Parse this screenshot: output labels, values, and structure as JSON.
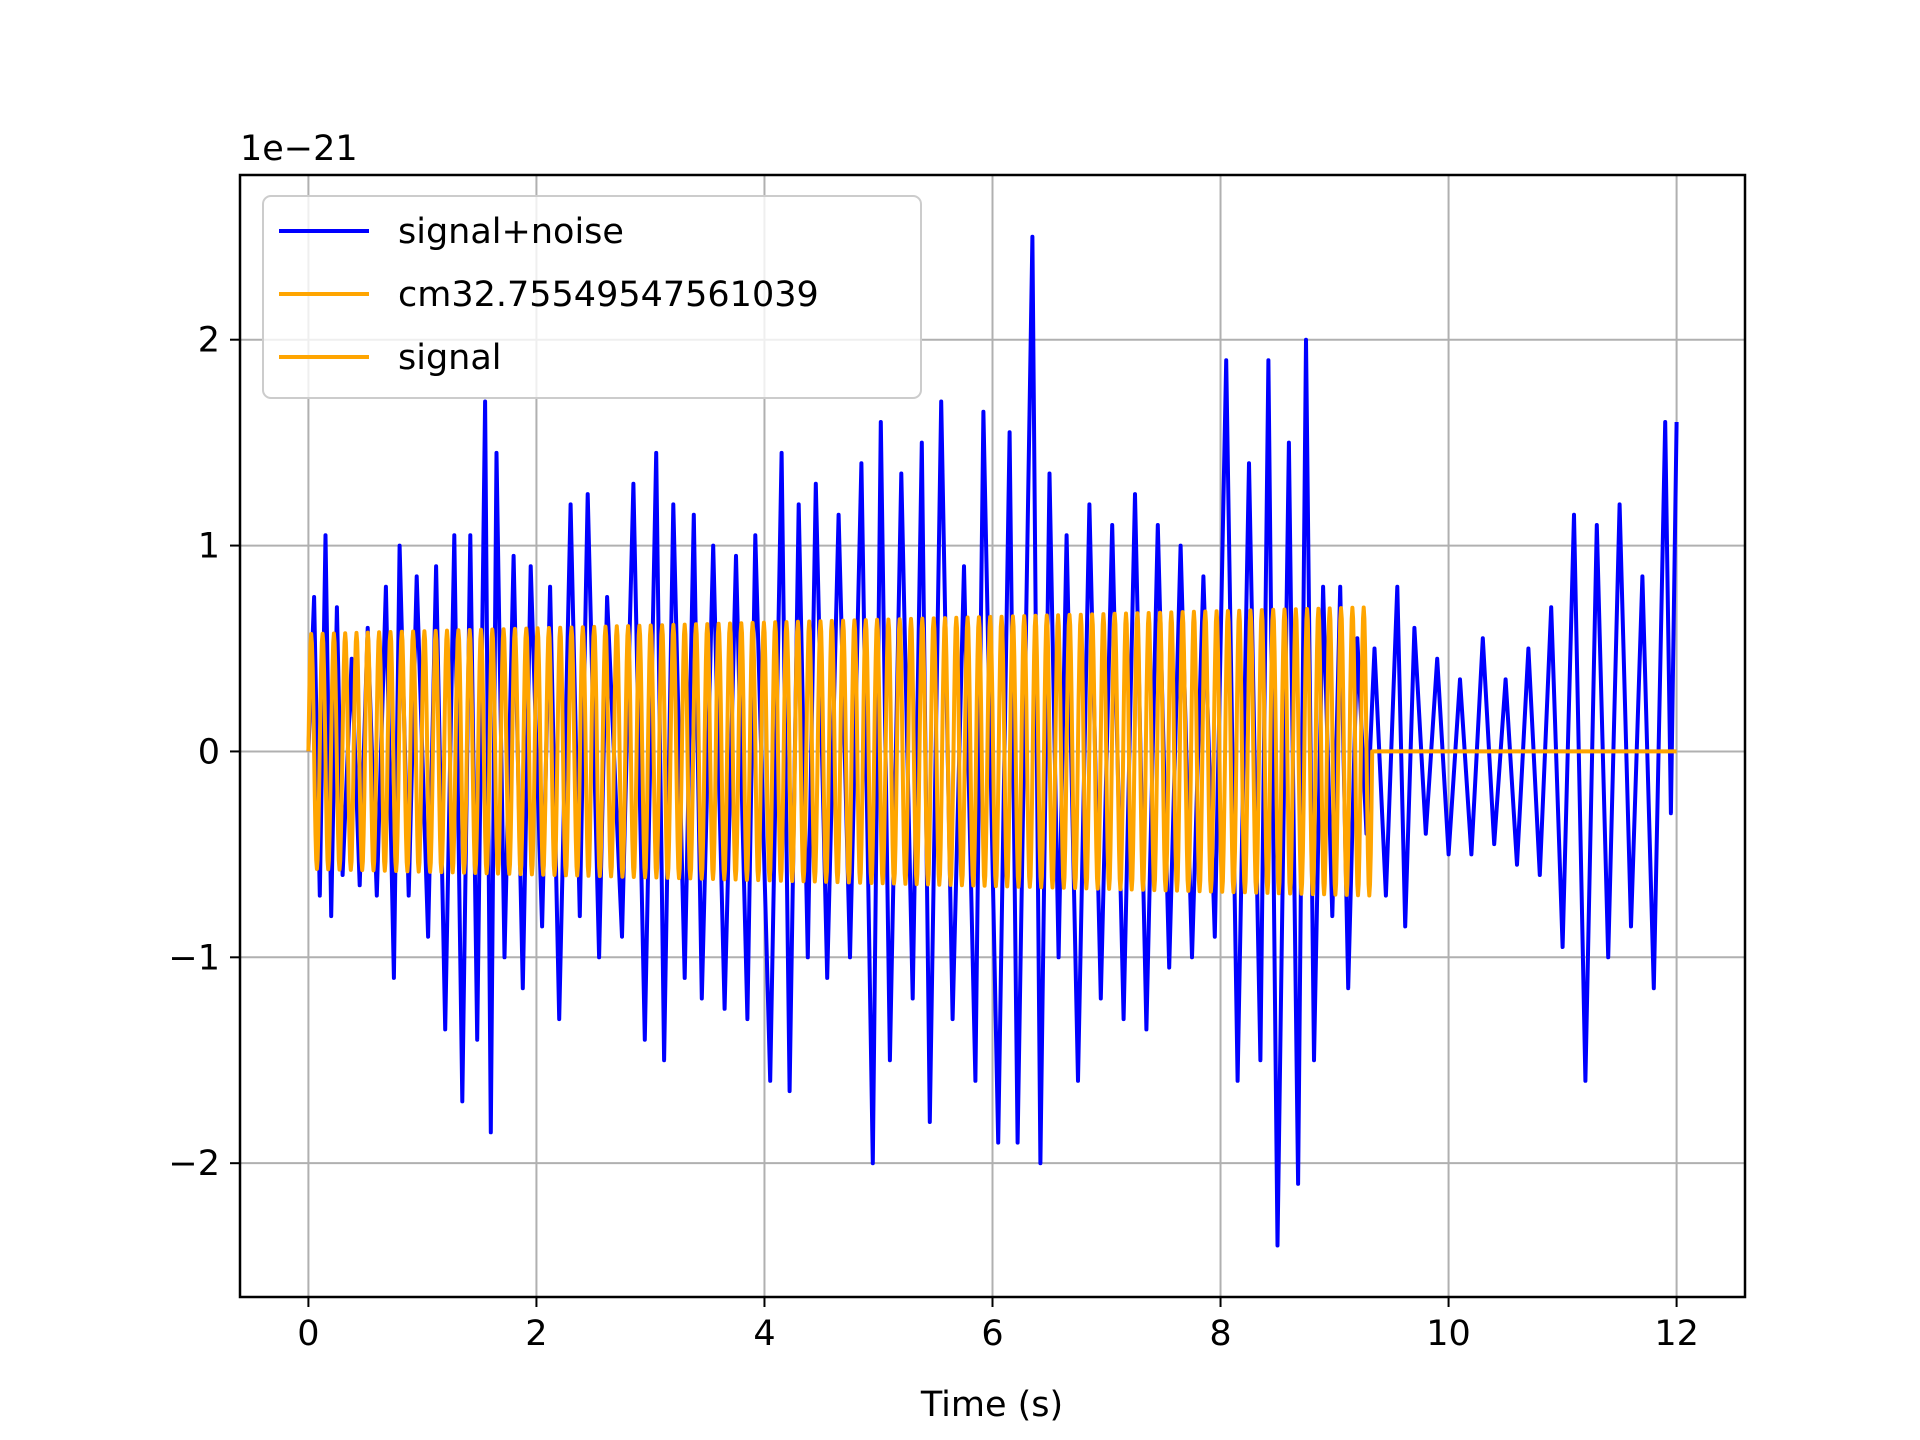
{
  "chart_data": {
    "type": "line",
    "xlabel": "Time (s)",
    "ylabel": "",
    "offset_label": "1e−21",
    "xlim": [
      -0.6,
      12.6
    ],
    "ylim": [
      -2.65,
      2.8
    ],
    "x_ticks": [
      0,
      2,
      4,
      6,
      8,
      10,
      12
    ],
    "x_tick_labels": [
      "0",
      "2",
      "4",
      "6",
      "8",
      "10",
      "12"
    ],
    "y_ticks": [
      -2,
      -1,
      0,
      1,
      2
    ],
    "y_tick_labels": [
      "−2",
      "−1",
      "0",
      "1",
      "2"
    ],
    "grid": true,
    "legend_position": "top-left",
    "series": [
      {
        "name": "signal+noise",
        "color": "#0000ff",
        "x": [
          0.0,
          0.05,
          0.1,
          0.15,
          0.2,
          0.25,
          0.3,
          0.38,
          0.45,
          0.52,
          0.6,
          0.68,
          0.75,
          0.8,
          0.88,
          0.95,
          1.05,
          1.12,
          1.2,
          1.28,
          1.35,
          1.42,
          1.48,
          1.55,
          1.6,
          1.65,
          1.72,
          1.8,
          1.88,
          1.95,
          2.05,
          2.12,
          2.2,
          2.3,
          2.38,
          2.45,
          2.55,
          2.62,
          2.75,
          2.85,
          2.95,
          3.05,
          3.12,
          3.2,
          3.3,
          3.38,
          3.45,
          3.55,
          3.65,
          3.75,
          3.85,
          3.92,
          4.05,
          4.15,
          4.22,
          4.3,
          4.38,
          4.45,
          4.55,
          4.65,
          4.75,
          4.85,
          4.95,
          5.02,
          5.1,
          5.2,
          5.3,
          5.38,
          5.45,
          5.55,
          5.65,
          5.75,
          5.85,
          5.92,
          6.05,
          6.15,
          6.22,
          6.35,
          6.42,
          6.5,
          6.58,
          6.65,
          6.75,
          6.85,
          6.95,
          7.05,
          7.15,
          7.25,
          7.35,
          7.45,
          7.55,
          7.65,
          7.75,
          7.85,
          7.95,
          8.05,
          8.15,
          8.25,
          8.35,
          8.42,
          8.5,
          8.6,
          8.68,
          8.75,
          8.82,
          8.9,
          8.98,
          9.05,
          9.12,
          9.2,
          9.28,
          9.35,
          9.45,
          9.55,
          9.62,
          9.7,
          9.8,
          9.9,
          10.0,
          10.1,
          10.2,
          10.3,
          10.4,
          10.5,
          10.6,
          10.7,
          10.8,
          10.9,
          11.0,
          11.1,
          11.2,
          11.3,
          11.4,
          11.5,
          11.6,
          11.7,
          11.8,
          11.9,
          11.95,
          12.0
        ],
        "y": [
          0.0,
          0.75,
          -0.7,
          1.05,
          -0.8,
          0.7,
          -0.6,
          0.45,
          -0.65,
          0.6,
          -0.7,
          0.8,
          -1.1,
          1.0,
          -0.7,
          0.85,
          -0.9,
          0.9,
          -1.35,
          1.05,
          -1.7,
          1.05,
          -1.4,
          1.7,
          -1.85,
          1.45,
          -1.0,
          0.95,
          -1.15,
          0.9,
          -0.85,
          0.8,
          -1.3,
          1.2,
          -0.8,
          1.25,
          -1.0,
          0.75,
          -0.9,
          1.3,
          -1.4,
          1.45,
          -1.5,
          1.2,
          -1.1,
          1.15,
          -1.2,
          1.0,
          -1.25,
          0.95,
          -1.3,
          1.05,
          -1.6,
          1.45,
          -1.65,
          1.2,
          -1.0,
          1.3,
          -1.1,
          1.15,
          -1.0,
          1.4,
          -2.0,
          1.6,
          -1.5,
          1.35,
          -1.2,
          1.5,
          -1.8,
          1.7,
          -1.3,
          0.9,
          -1.6,
          1.65,
          -1.9,
          1.55,
          -1.9,
          2.5,
          -2.0,
          1.35,
          -1.0,
          1.05,
          -1.6,
          1.2,
          -1.2,
          1.1,
          -1.3,
          1.25,
          -1.35,
          1.1,
          -1.05,
          1.0,
          -1.0,
          0.85,
          -0.9,
          1.9,
          -1.6,
          1.4,
          -1.5,
          1.9,
          -2.4,
          1.5,
          -2.1,
          2.0,
          -1.5,
          0.8,
          -0.8,
          0.8,
          -1.15,
          0.55,
          -0.4,
          0.5,
          -0.7,
          0.8,
          -0.85,
          0.6,
          -0.4,
          0.45,
          -0.5,
          0.35,
          -0.5,
          0.55,
          -0.45,
          0.35,
          -0.55,
          0.5,
          -0.6,
          0.7,
          -0.95,
          1.15,
          -1.6,
          1.1,
          -1.0,
          1.2,
          -0.85,
          0.85,
          -1.15,
          1.6,
          -0.3,
          1.6
        ]
      },
      {
        "name": "cm32.75549547561039",
        "color": "#ffa500",
        "x_start": 0.0,
        "x_end": 9.33,
        "cycles": 94,
        "amplitude_start": 0.57,
        "amplitude_end": 0.7,
        "after_end_value": 0.0,
        "x_final": 12.0
      },
      {
        "name": "signal",
        "color": "#ffa500",
        "same_as": "cm32.75549547561039"
      }
    ]
  }
}
